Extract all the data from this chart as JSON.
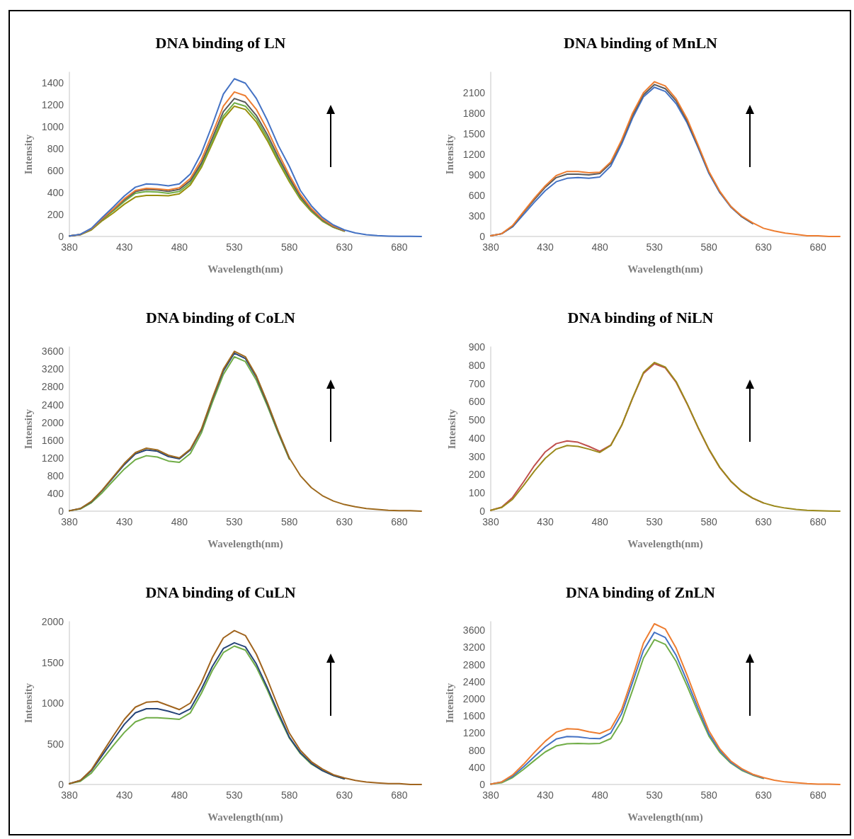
{
  "chart_data": [
    {
      "type": "line",
      "title": "DNA binding of LN",
      "xlabel": "Wavelength(nm)",
      "ylabel": "Intensity",
      "grid": false,
      "marker": "none",
      "line_style": "solid",
      "x": [
        380,
        390,
        400,
        410,
        420,
        430,
        440,
        450,
        460,
        470,
        480,
        490,
        500,
        510,
        520,
        530,
        540,
        550,
        560,
        570,
        580,
        590,
        600,
        610,
        620,
        630,
        640,
        650,
        660,
        670,
        680,
        690,
        700
      ],
      "xlim": [
        380,
        700
      ],
      "xticks": [
        380,
        430,
        480,
        530,
        580,
        630,
        680
      ],
      "ylim": [
        0,
        1500
      ],
      "yticks": [
        0,
        200,
        400,
        600,
        800,
        1000,
        1200,
        1400
      ],
      "series": [
        {
          "color": "#998f0a",
          "values": [
            5,
            16,
            60,
            145,
            215,
            295,
            360,
            375,
            375,
            372,
            390,
            470,
            630,
            850,
            1075,
            1190,
            1160,
            1045,
            875,
            680,
            500,
            340,
            228,
            140,
            83,
            48,
            null,
            null,
            null,
            null,
            null,
            null,
            null
          ]
        },
        {
          "color": "#70ad47",
          "values": [
            5,
            17,
            65,
            155,
            235,
            320,
            395,
            410,
            405,
            395,
            410,
            490,
            650,
            870,
            1100,
            1220,
            1190,
            1075,
            900,
            700,
            515,
            350,
            235,
            145,
            86,
            50,
            null,
            null,
            null,
            null,
            null,
            null,
            null
          ]
        },
        {
          "color": "#5a5a5a",
          "values": [
            5,
            18,
            68,
            160,
            245,
            335,
            410,
            430,
            425,
            412,
            430,
            510,
            670,
            900,
            1140,
            1260,
            1225,
            1105,
            930,
            725,
            535,
            365,
            245,
            152,
            90,
            52,
            null,
            null,
            null,
            null,
            null,
            null,
            null
          ]
        },
        {
          "color": "#ed7d31",
          "values": [
            5,
            18,
            70,
            165,
            250,
            345,
            420,
            440,
            435,
            425,
            445,
            530,
            700,
            940,
            1190,
            1320,
            1285,
            1160,
            975,
            760,
            560,
            385,
            255,
            160,
            95,
            55,
            null,
            null,
            null,
            null,
            null,
            null,
            null
          ]
        },
        {
          "color": "#4472c4",
          "values": [
            5,
            20,
            75,
            175,
            270,
            370,
            450,
            480,
            475,
            462,
            480,
            570,
            760,
            1020,
            1300,
            1440,
            1400,
            1260,
            1060,
            830,
            640,
            420,
            280,
            175,
            105,
            60,
            32,
            16,
            8,
            4,
            2,
            1,
            0
          ]
        }
      ]
    },
    {
      "type": "line",
      "title": "DNA binding of MnLN",
      "xlabel": "Wavelength(nm)",
      "ylabel": "Intensity",
      "grid": false,
      "marker": "none",
      "line_style": "solid",
      "x": [
        380,
        390,
        400,
        410,
        420,
        430,
        440,
        450,
        460,
        470,
        480,
        490,
        500,
        510,
        520,
        530,
        540,
        550,
        560,
        570,
        580,
        590,
        600,
        610,
        620,
        630,
        640,
        650,
        660,
        670,
        680,
        690,
        700
      ],
      "xlim": [
        380,
        700
      ],
      "xticks": [
        380,
        430,
        480,
        530,
        580,
        630,
        680
      ],
      "ylim": [
        0,
        2400
      ],
      "yticks": [
        0,
        300,
        600,
        900,
        1200,
        1500,
        1800,
        2100
      ],
      "series": [
        {
          "color": "#4472c4",
          "values": [
            10,
            40,
            140,
            320,
            500,
            670,
            800,
            850,
            860,
            850,
            870,
            1030,
            1350,
            1730,
            2040,
            2180,
            2120,
            1940,
            1660,
            1300,
            920,
            640,
            430,
            290,
            190,
            null,
            null,
            null,
            null,
            null,
            null,
            null,
            null
          ]
        },
        {
          "color": "#5a5a5a",
          "values": [
            10,
            40,
            150,
            350,
            540,
            720,
            860,
            910,
            910,
            900,
            920,
            1070,
            1390,
            1770,
            2070,
            2220,
            2160,
            1980,
            1690,
            1320,
            940,
            650,
            440,
            290,
            190,
            null,
            null,
            null,
            null,
            null,
            null,
            null,
            null
          ]
        },
        {
          "color": "#ed7d31",
          "values": [
            10,
            40,
            160,
            360,
            560,
            740,
            890,
            950,
            950,
            930,
            940,
            1090,
            1410,
            1800,
            2100,
            2260,
            2200,
            2010,
            1720,
            1340,
            950,
            660,
            440,
            300,
            200,
            120,
            80,
            50,
            30,
            10,
            10,
            0,
            0
          ]
        }
      ]
    },
    {
      "type": "line",
      "title": "DNA binding of CoLN",
      "xlabel": "Wavelength(nm)",
      "ylabel": "Intensity",
      "grid": false,
      "marker": "none",
      "line_style": "solid",
      "x": [
        380,
        390,
        400,
        410,
        420,
        430,
        440,
        450,
        460,
        470,
        480,
        490,
        500,
        510,
        520,
        530,
        540,
        550,
        560,
        570,
        580,
        590,
        600,
        610,
        620,
        630,
        640,
        650,
        660,
        670,
        680,
        690,
        700
      ],
      "xlim": [
        380,
        700
      ],
      "xticks": [
        380,
        430,
        480,
        530,
        580,
        630,
        680
      ],
      "ylim": [
        0,
        3700
      ],
      "yticks": [
        0,
        400,
        800,
        1200,
        1600,
        2000,
        2400,
        2800,
        3200,
        3600
      ],
      "series": [
        {
          "color": "#70ad47",
          "values": [
            10,
            50,
            190,
            420,
            690,
            950,
            1160,
            1250,
            1220,
            1130,
            1100,
            1300,
            1760,
            2450,
            3080,
            3480,
            3370,
            2950,
            2370,
            1750,
            1170,
            null,
            null,
            null,
            null,
            null,
            null,
            null,
            null,
            null,
            null,
            null,
            null
          ]
        },
        {
          "color": "#264478",
          "values": [
            10,
            60,
            210,
            470,
            760,
            1050,
            1290,
            1380,
            1350,
            1230,
            1180,
            1380,
            1830,
            2520,
            3160,
            3560,
            3440,
            3020,
            2420,
            1780,
            1190,
            null,
            null,
            null,
            null,
            null,
            null,
            null,
            null,
            null,
            null,
            null,
            null
          ]
        },
        {
          "color": "#9e6a1e",
          "values": [
            10,
            60,
            220,
            480,
            780,
            1080,
            1320,
            1420,
            1380,
            1260,
            1200,
            1400,
            1850,
            2550,
            3200,
            3600,
            3480,
            3050,
            2450,
            1800,
            1200,
            800,
            530,
            350,
            230,
            150,
            100,
            60,
            40,
            20,
            10,
            10,
            0
          ]
        }
      ]
    },
    {
      "type": "line",
      "title": "DNA binding of NiLN",
      "xlabel": "Wavelength(nm)",
      "ylabel": "Intensity",
      "grid": false,
      "marker": "none",
      "line_style": "solid",
      "x": [
        380,
        390,
        400,
        410,
        420,
        430,
        440,
        450,
        460,
        470,
        480,
        490,
        500,
        510,
        520,
        530,
        540,
        550,
        560,
        570,
        580,
        590,
        600,
        610,
        620,
        630,
        640,
        650,
        660,
        670,
        680,
        690,
        700
      ],
      "xlim": [
        380,
        700
      ],
      "xticks": [
        380,
        430,
        480,
        530,
        580,
        630,
        680
      ],
      "ylim": [
        0,
        900
      ],
      "yticks": [
        0,
        100,
        200,
        300,
        400,
        500,
        600,
        700,
        800,
        900
      ],
      "series": [
        {
          "color": "#c0504d",
          "values": [
            5,
            22,
            75,
            160,
            250,
            325,
            370,
            385,
            378,
            355,
            328,
            362,
            470,
            618,
            755,
            808,
            785,
            705,
            588,
            458,
            338,
            238,
            164,
            109,
            71,
            45,
            null,
            null,
            null,
            null,
            null,
            null,
            null
          ]
        },
        {
          "color": "#9b8a1c",
          "values": [
            5,
            20,
            65,
            140,
            220,
            290,
            340,
            360,
            355,
            340,
            322,
            360,
            470,
            620,
            760,
            815,
            790,
            710,
            590,
            460,
            340,
            240,
            165,
            110,
            72,
            45,
            28,
            17,
            10,
            5,
            3,
            1,
            0
          ]
        }
      ]
    },
    {
      "type": "line",
      "title": "DNA binding of CuLN",
      "xlabel": "Wavelength(nm)",
      "ylabel": "Intensity",
      "grid": false,
      "marker": "none",
      "line_style": "solid",
      "x": [
        380,
        390,
        400,
        410,
        420,
        430,
        440,
        450,
        460,
        470,
        480,
        490,
        500,
        510,
        520,
        530,
        540,
        550,
        560,
        570,
        580,
        590,
        600,
        610,
        620,
        630,
        640,
        650,
        660,
        670,
        680,
        690,
        700
      ],
      "xlim": [
        380,
        700
      ],
      "xticks": [
        380,
        430,
        480,
        530,
        580,
        630,
        680
      ],
      "ylim": [
        0,
        2000
      ],
      "yticks": [
        0,
        500,
        1000,
        1500,
        2000
      ],
      "series": [
        {
          "color": "#70ad47",
          "values": [
            10,
            40,
            140,
            310,
            480,
            640,
            770,
            820,
            820,
            810,
            800,
            880,
            1120,
            1400,
            1620,
            1700,
            1650,
            1440,
            1160,
            850,
            570,
            380,
            250,
            170,
            110,
            70,
            null,
            null,
            null,
            null,
            null,
            null,
            null
          ]
        },
        {
          "color": "#264478",
          "values": [
            10,
            50,
            170,
            360,
            550,
            740,
            880,
            930,
            930,
            900,
            860,
            930,
            1170,
            1450,
            1670,
            1740,
            1690,
            1480,
            1190,
            880,
            580,
            390,
            260,
            170,
            110,
            70,
            null,
            null,
            null,
            null,
            null,
            null,
            null
          ]
        },
        {
          "color": "#a0641e",
          "values": [
            10,
            50,
            180,
            390,
            600,
            800,
            950,
            1010,
            1020,
            970,
            920,
            1000,
            1250,
            1560,
            1800,
            1890,
            1830,
            1600,
            1290,
            950,
            630,
            420,
            280,
            190,
            120,
            80,
            50,
            30,
            20,
            10,
            10,
            0,
            0
          ]
        }
      ]
    },
    {
      "type": "line",
      "title": "DNA binding of ZnLN",
      "xlabel": "Wavelength(nm)",
      "ylabel": "Intensity",
      "grid": false,
      "marker": "none",
      "line_style": "solid",
      "x": [
        380,
        390,
        400,
        410,
        420,
        430,
        440,
        450,
        460,
        470,
        480,
        490,
        500,
        510,
        520,
        530,
        540,
        550,
        560,
        570,
        580,
        590,
        600,
        610,
        620,
        630,
        640,
        650,
        660,
        670,
        680,
        690,
        700
      ],
      "xlim": [
        380,
        700
      ],
      "xticks": [
        380,
        430,
        480,
        530,
        580,
        630,
        680
      ],
      "ylim": [
        0,
        3800
      ],
      "yticks": [
        0,
        400,
        800,
        1200,
        1600,
        2000,
        2400,
        2800,
        3200,
        3600
      ],
      "series": [
        {
          "color": "#70ad47",
          "values": [
            10,
            40,
            160,
            350,
            560,
            760,
            900,
            950,
            960,
            950,
            960,
            1070,
            1480,
            2200,
            2950,
            3380,
            3270,
            2870,
            2300,
            1690,
            1130,
            750,
            500,
            330,
            220,
            140,
            null,
            null,
            null,
            null,
            null,
            null,
            null
          ]
        },
        {
          "color": "#4472c4",
          "values": [
            10,
            60,
            190,
            410,
            650,
            880,
            1060,
            1120,
            1110,
            1080,
            1070,
            1200,
            1650,
            2380,
            3130,
            3550,
            3430,
            3010,
            2410,
            1780,
            1180,
            790,
            520,
            350,
            230,
            150,
            null,
            null,
            null,
            null,
            null,
            null,
            null
          ]
        },
        {
          "color": "#ed7d31",
          "values": [
            10,
            60,
            220,
            470,
            750,
            1010,
            1220,
            1300,
            1290,
            1230,
            1190,
            1300,
            1750,
            2500,
            3300,
            3750,
            3630,
            3180,
            2550,
            1880,
            1250,
            830,
            550,
            370,
            240,
            160,
            100,
            60,
            40,
            20,
            10,
            10,
            0
          ]
        }
      ]
    }
  ]
}
